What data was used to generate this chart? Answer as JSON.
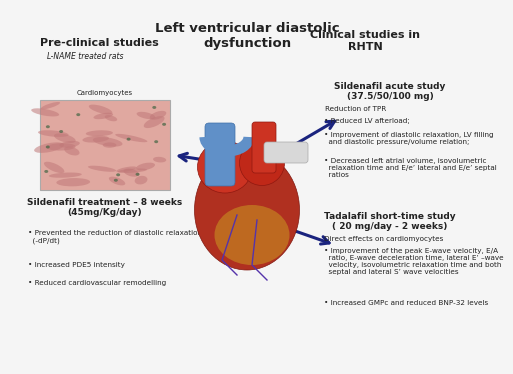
{
  "title": "Left ventricular diastolic\ndysfunction",
  "background_color": "#f5f5f5",
  "left_title": "Pre-clinical studies",
  "left_subtitle": "L-NAME treated rats",
  "left_box_label": "Cardiomyocytes",
  "left_treatment_title": "Sildenafil treatment – 8 weeks\n(45mg/Kg/day)",
  "left_bullets": [
    "• Prevented the reduction of diastolic relaxation\n  (-dP/dt)",
    "• Increased PDE5 intensity",
    "• Reduced cardiovascular remodelling"
  ],
  "right_title": "Clinical studies in\nRHTN",
  "right_section1_title": "Sildenafil acute study\n(37.5/50/100 mg)",
  "right_section1_subtitle": "Reduction of TPR",
  "right_section1_bullets": [
    "• Reduced LV afterload;",
    "• Improvement of diastolic relaxation, LV filling\n  and diastolic pressure/volume relation;",
    "• Decreased left atrial volume, isovolumetric\n  relaxation time and E/e’ lateral and E/e’ septal\n  ratios"
  ],
  "right_section2_title": "Tadalafil short-time study\n( 20 mg/day - 2 weeks)",
  "right_section2_subtitle": "Direct effects on cardiomyocytes",
  "right_section2_bullets": [
    "• Improvement of the peak E-wave velocity, E/A\n  ratio, E-wave deceleration time, lateral E’ –wave\n  velocity, isovolumetric relaxation time and both\n  septal and lateral S’ wave velocities",
    "• Increased GMPc and reduced BNP-32 levels"
  ],
  "arrow_color": "#1a237e",
  "text_color": "#222222",
  "bullet_fontsize": 5.2,
  "section_title_fontsize": 6.5,
  "main_title_fontsize": 9.5,
  "header_fontsize": 8.0,
  "subtitle_fontsize": 5.5,
  "treat_fontsize": 6.5
}
